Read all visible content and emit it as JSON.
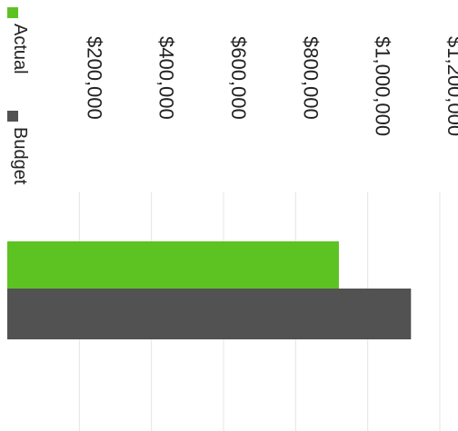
{
  "chart_data": {
    "type": "bar",
    "orientation": "horizontal",
    "rotation": "rotated 90 degrees clockwise",
    "title": "",
    "xlabel": "",
    "ylabel": "",
    "categories": [
      ""
    ],
    "series": [
      {
        "name": "Actual",
        "values": [
          920000
        ],
        "color": "#5cc322"
      },
      {
        "name": "Budget",
        "values": [
          1120000
        ],
        "color": "#525252"
      }
    ],
    "xlim": [
      0,
      1200000
    ],
    "ticks": [
      0,
      200000,
      400000,
      600000,
      800000,
      1000000,
      1200000
    ],
    "tick_labels": [
      "",
      "$200,000",
      "$400,000",
      "$600,000",
      "$800,000",
      "$1,000,000",
      "$1,200,000"
    ],
    "grid": true,
    "gridline_color": "#e4e4e4",
    "legend_position": "top-left"
  }
}
